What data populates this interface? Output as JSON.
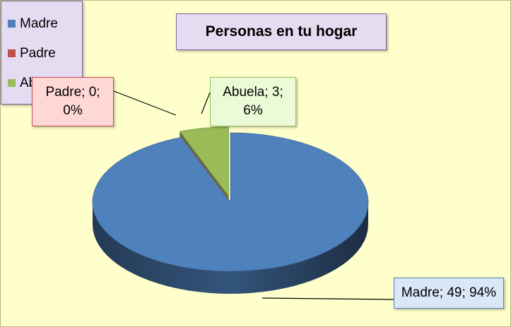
{
  "chart_data": {
    "type": "pie",
    "title": "Personas en tu hogar",
    "categories": [
      "Madre",
      "Padre",
      "Abuela"
    ],
    "values": [
      49,
      0,
      3
    ],
    "value_labels": [
      "Madre; 49; 94%",
      "Padre; 0; 0%",
      "Abuela; 3; 6%"
    ],
    "colors": [
      "#4f81bd",
      "#c0504d",
      "#9bbb59"
    ],
    "legend": "right"
  }
}
